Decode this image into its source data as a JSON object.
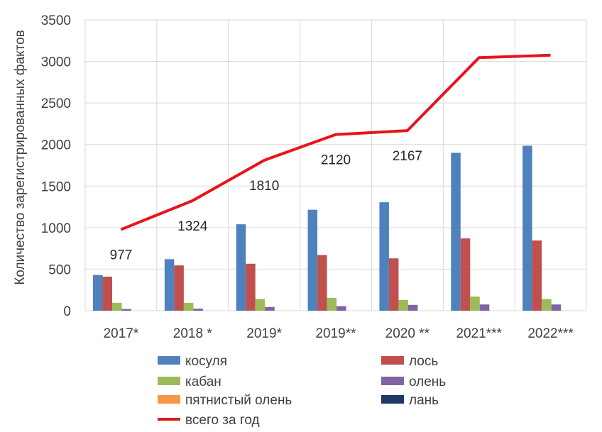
{
  "chart_data": {
    "type": "bar",
    "title": "",
    "xlabel": "",
    "ylabel": "Количество зарегистрированных фактов",
    "ylim": [
      0,
      3500
    ],
    "yticks": [
      0,
      500,
      1000,
      1500,
      2000,
      2500,
      3000,
      3500
    ],
    "ytick_labels": [
      "0",
      "500",
      "1000",
      "1500",
      "2000",
      "2500",
      "3000",
      "3500"
    ],
    "grid": true,
    "legend_position": "bottom",
    "categories": [
      "2017*",
      "2018 *",
      "2019*",
      "2019**",
      "2020 **",
      "2021***",
      "2022***"
    ],
    "series": [
      {
        "name": "косуля",
        "color": "#4F81BD",
        "values": [
          430,
          620,
          1040,
          1215,
          1305,
          1900,
          1985
        ]
      },
      {
        "name": "лось",
        "color": "#C0504D",
        "values": [
          410,
          545,
          565,
          670,
          630,
          870,
          845
        ]
      },
      {
        "name": "кабан",
        "color": "#9BBB59",
        "values": [
          95,
          95,
          140,
          155,
          130,
          170,
          140
        ]
      },
      {
        "name": "олень",
        "color": "#8064A2",
        "values": [
          20,
          25,
          45,
          55,
          70,
          75,
          75
        ]
      },
      {
        "name": "пятнистый олень",
        "color": "#F79646",
        "values": [
          0,
          0,
          0,
          0,
          0,
          0,
          0
        ]
      },
      {
        "name": "лань",
        "color": "#1F3864",
        "values": [
          0,
          0,
          0,
          0,
          0,
          0,
          0
        ]
      }
    ],
    "line": {
      "name": "всего за год",
      "color": "#E8141B",
      "values": [
        977,
        1324,
        1810,
        2120,
        2167,
        3045,
        3075
      ],
      "data_labels": [
        "977",
        "1324",
        "1810",
        "2120",
        "2167",
        "",
        ""
      ]
    },
    "legend": [
      {
        "label": "косуля",
        "color": "#4F81BD",
        "kind": "box"
      },
      {
        "label": "лось",
        "color": "#C0504D",
        "kind": "box"
      },
      {
        "label": "кабан",
        "color": "#9BBB59",
        "kind": "box"
      },
      {
        "label": "олень",
        "color": "#8064A2",
        "kind": "box"
      },
      {
        "label": "пятнистый олень",
        "color": "#F79646",
        "kind": "box"
      },
      {
        "label": "лань",
        "color": "#1F3864",
        "kind": "box"
      },
      {
        "label": "всего за год",
        "color": "#E8141B",
        "kind": "line"
      }
    ]
  }
}
